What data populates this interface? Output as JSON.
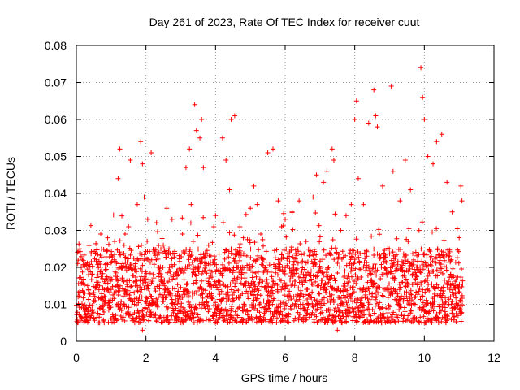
{
  "chart_data": {
    "type": "scatter",
    "title": "Day 261 of 2023, Rate Of TEC Index for receiver cuut",
    "xlabel": "GPS time / hours",
    "ylabel": "ROTI / TECUs",
    "xlim": [
      0,
      12
    ],
    "ylim": [
      0,
      0.08
    ],
    "xticks": [
      0,
      2,
      4,
      6,
      8,
      10,
      12
    ],
    "xtick_labels": [
      "0",
      "2",
      "4",
      "6",
      "8",
      "10",
      "12"
    ],
    "yticks": [
      0,
      0.01,
      0.02,
      0.03,
      0.04,
      0.05,
      0.06,
      0.07,
      0.08
    ],
    "ytick_labels": [
      "0",
      "0.01",
      "0.02",
      "0.03",
      "0.04",
      "0.05",
      "0.06",
      "0.07",
      "0.08"
    ],
    "grid": true,
    "marker": "+",
    "color": "#ff0000",
    "series": [
      {
        "name": "ROTI",
        "x_range": [
          0,
          11.1
        ],
        "typical_range": [
          0.005,
          0.025
        ],
        "points": [
          [
            0.05,
            0.012
          ],
          [
            0.1,
            0.025
          ],
          [
            0.2,
            0.009
          ],
          [
            0.35,
            0.018
          ],
          [
            0.5,
            0.011
          ],
          [
            0.7,
            0.029
          ],
          [
            0.8,
            0.005
          ],
          [
            0.9,
            0.028
          ],
          [
            1.0,
            0.014
          ],
          [
            1.1,
            0.027
          ],
          [
            1.2,
            0.044
          ],
          [
            1.25,
            0.052
          ],
          [
            1.4,
            0.029
          ],
          [
            1.5,
            0.031
          ],
          [
            1.55,
            0.049
          ],
          [
            1.7,
            0.021
          ],
          [
            1.75,
            0.037
          ],
          [
            1.85,
            0.054
          ],
          [
            1.9,
            0.048
          ],
          [
            1.95,
            0.039
          ],
          [
            2.0,
            0.016
          ],
          [
            2.05,
            0.033
          ],
          [
            2.15,
            0.051
          ],
          [
            2.3,
            0.022
          ],
          [
            2.5,
            0.026
          ],
          [
            2.6,
            0.036
          ],
          [
            2.75,
            0.033
          ],
          [
            2.9,
            0.019
          ],
          [
            3.05,
            0.029
          ],
          [
            3.15,
            0.047
          ],
          [
            3.25,
            0.052
          ],
          [
            3.3,
            0.037
          ],
          [
            3.4,
            0.064
          ],
          [
            3.45,
            0.057
          ],
          [
            3.55,
            0.055
          ],
          [
            3.6,
            0.06
          ],
          [
            3.65,
            0.047
          ],
          [
            3.8,
            0.026
          ],
          [
            3.95,
            0.031
          ],
          [
            4.0,
            0.034
          ],
          [
            4.2,
            0.055
          ],
          [
            4.3,
            0.049
          ],
          [
            4.4,
            0.041
          ],
          [
            4.45,
            0.06
          ],
          [
            4.55,
            0.061
          ],
          [
            4.7,
            0.031
          ],
          [
            4.8,
            0.028
          ],
          [
            5.0,
            0.036
          ],
          [
            5.1,
            0.042
          ],
          [
            5.2,
            0.037
          ],
          [
            5.3,
            0.029
          ],
          [
            5.5,
            0.051
          ],
          [
            5.65,
            0.052
          ],
          [
            5.8,
            0.038
          ],
          [
            5.9,
            0.031
          ],
          [
            6.0,
            0.033
          ],
          [
            6.2,
            0.035
          ],
          [
            6.4,
            0.038
          ],
          [
            6.6,
            0.027
          ],
          [
            6.8,
            0.039
          ],
          [
            6.9,
            0.045
          ],
          [
            7.1,
            0.043
          ],
          [
            7.2,
            0.046
          ],
          [
            7.35,
            0.052
          ],
          [
            7.4,
            0.049
          ],
          [
            7.6,
            0.03
          ],
          [
            7.75,
            0.034
          ],
          [
            7.9,
            0.037
          ],
          [
            8.0,
            0.06
          ],
          [
            8.05,
            0.065
          ],
          [
            8.1,
            0.044
          ],
          [
            8.25,
            0.037
          ],
          [
            8.4,
            0.059
          ],
          [
            8.55,
            0.068
          ],
          [
            8.6,
            0.061
          ],
          [
            8.65,
            0.058
          ],
          [
            8.8,
            0.042
          ],
          [
            9.05,
            0.069
          ],
          [
            9.1,
            0.046
          ],
          [
            9.3,
            0.038
          ],
          [
            9.45,
            0.049
          ],
          [
            9.6,
            0.041
          ],
          [
            9.9,
            0.074
          ],
          [
            9.95,
            0.066
          ],
          [
            10.0,
            0.06
          ],
          [
            10.1,
            0.05
          ],
          [
            10.25,
            0.048
          ],
          [
            10.35,
            0.054
          ],
          [
            10.5,
            0.056
          ],
          [
            10.65,
            0.043
          ],
          [
            10.8,
            0.035
          ],
          [
            11.05,
            0.042
          ],
          [
            11.08,
            0.038
          ],
          [
            1.9,
            0.003
          ],
          [
            7.5,
            0.003
          ]
        ]
      }
    ]
  }
}
